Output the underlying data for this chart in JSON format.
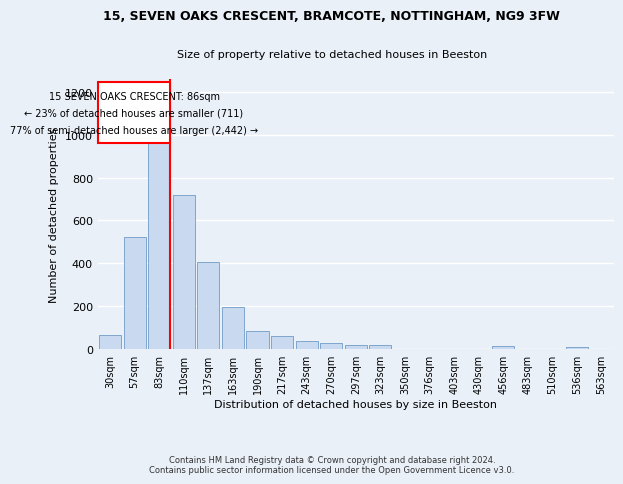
{
  "title_line1": "15, SEVEN OAKS CRESCENT, BRAMCOTE, NOTTINGHAM, NG9 3FW",
  "title_line2": "Size of property relative to detached houses in Beeston",
  "xlabel": "Distribution of detached houses by size in Beeston",
  "ylabel": "Number of detached properties",
  "footnote": "Contains HM Land Registry data © Crown copyright and database right 2024.\nContains public sector information licensed under the Open Government Licence v3.0.",
  "bar_labels": [
    "30sqm",
    "57sqm",
    "83sqm",
    "110sqm",
    "137sqm",
    "163sqm",
    "190sqm",
    "217sqm",
    "243sqm",
    "270sqm",
    "297sqm",
    "323sqm",
    "350sqm",
    "376sqm",
    "403sqm",
    "430sqm",
    "456sqm",
    "483sqm",
    "510sqm",
    "536sqm",
    "563sqm"
  ],
  "bar_values": [
    65,
    525,
    1000,
    720,
    405,
    195,
    85,
    60,
    38,
    30,
    18,
    18,
    0,
    0,
    0,
    0,
    15,
    0,
    0,
    10,
    0
  ],
  "bar_color": "#c9d9f0",
  "bar_edge_color": "#5b8dc0",
  "ylim": [
    0,
    1260
  ],
  "yticks": [
    0,
    200,
    400,
    600,
    800,
    1000,
    1200
  ],
  "annotation_text_line1": "15 SEVEN OAKS CRESCENT: 86sqm",
  "annotation_text_line2": "← 23% of detached houses are smaller (711)",
  "annotation_text_line3": "77% of semi-detached houses are larger (2,442) →",
  "redline_bar_index": 2,
  "bg_color": "#eaf0f8",
  "grid_color": "#ffffff"
}
